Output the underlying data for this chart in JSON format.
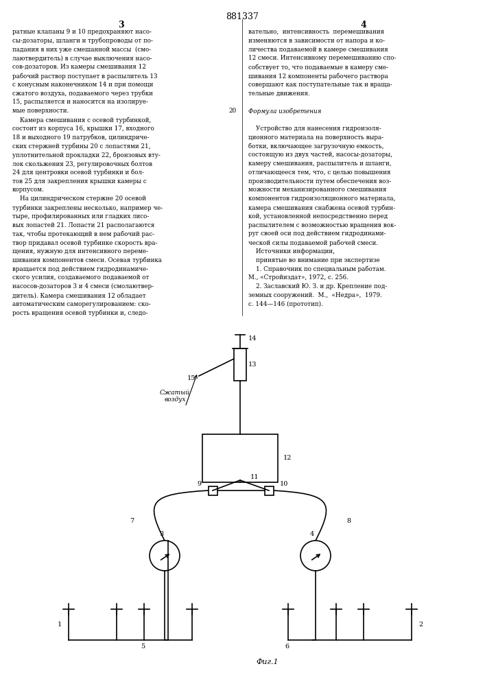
{
  "title": "881337",
  "page_number_left": "3",
  "page_number_right": "4",
  "fig_label": "Фиг.1",
  "bg_color": "#ffffff",
  "line_color": "#000000",
  "text_left_lines": [
    "ратные клапаны 9 и 10 предохраняют насо-",
    "сы-дозаторы, шланги и трубопроводы от по-",
    "падания в них уже смешанной массы  (смо-",
    "лаютвердитель) в случае выключения насо-",
    "сов-дозаторов. Из камеры смешивания 12",
    "рабочий раствор поступает в распылитель 13",
    "с конусным наконечником 14 и при помощи",
    "сжатого воздуха, подаваемого через трубки",
    "15, распыляется и наносится на изолируе-",
    "мые поверхности.",
    "    Камера смешивания с осевой турбинкой,",
    "состоит из корпуса 16, крышки 17, входного",
    "18 и выходного 19 патрубков, цилиндриче-",
    "ских стержней турбины 20 с лопастями 21,",
    "уплотнительной прокладки 22, бронзовых вту-",
    "лок скольжения 23, регулировочных болтов",
    "24 для центровки осевой турбинки и бол-",
    "тов 25 для закрепления крышки камеры с",
    "корпусом.",
    "    На цилиндрическом стержне 20 осевой",
    "турбинки закреплены несколько, например че-",
    "тыре, профилированных или гладких лисо-",
    "вых лопастей 21. Лопасти 21 располагаются",
    "так, чтобы протекающий в нем рабочий рас-",
    "твор придавал осевой турбинке скорость вра-",
    "щения, нужную для интенсивного переме-",
    "шивания компонентов смеси. Осевая турбинка",
    "вращается под действием гидродинамиче-",
    "ского усилия, создаваемого подаваемой от",
    "насосов-дозаторов 3 и 4 смеси (смолаютвер-",
    "дитель). Камера смешивания 12 обладает",
    "автоматическим саморегулированием: ско-",
    "рость вращения осевой турбинки и, следо-"
  ],
  "text_right_lines": [
    "вательно,  интенсивность  перемешивания",
    "изменяются в зависимости от напора и ко-",
    "личества подаваемой в камере смешивания",
    "12 смеси. Интенсивному перемешиванию спо-",
    "собствует то, что подаваемые в камеру сме-",
    "шивания 12 компоненты рабочего раствора",
    "совершают как поступательные так и враща-",
    "тельные движения.",
    "",
    "Формула изобретения",
    "",
    "    Устройство для нанесения гидроизоля-",
    "ционного материала на поверхность выра-",
    "ботки, включающее загрузочную емкость,",
    "состоящую из двух частей, насосы-дозаторы,",
    "камеру смешивания, распылитель и шланги,",
    "отличающееся тем, что, с целью повышения",
    "производительности путем обеспечения воз-",
    "можности механизированного смешивания",
    "компонентов гидроизоляционного материала,",
    "камера смешивания снабжена осевой турбин-",
    "кой, установленной непосредственно перед",
    "распылителем с возможностью вращения вок-",
    "руг своей оси под действием гидродинами-",
    "ческой силы подаваемой рабочей смеси.",
    "    Источники информации,",
    "    принятые во внимание при экспертизе",
    "    1. Справочник по специальным работам.",
    "М., «Стройиздат», 1972, с. 256.",
    "    2. Заславский Ю. З. и др. Крепление под-",
    "земных сооружений.  М.,  «Недра»,  1979.",
    "с. 144—146 (прототип)."
  ]
}
